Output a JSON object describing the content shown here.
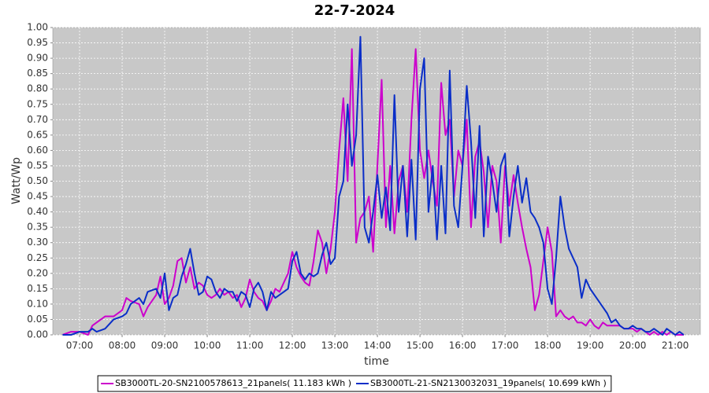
{
  "chart_data": {
    "type": "line",
    "title": "22-7-2024",
    "x_label": "time",
    "y_label": "Watt/Wp",
    "x": [
      6.6,
      6.8,
      7.0,
      7.2,
      7.3,
      7.4,
      7.6,
      7.8,
      8.0,
      8.1,
      8.2,
      8.4,
      8.5,
      8.6,
      8.8,
      8.9,
      9.0,
      9.1,
      9.2,
      9.3,
      9.4,
      9.5,
      9.6,
      9.7,
      9.8,
      9.9,
      10.0,
      10.1,
      10.2,
      10.3,
      10.4,
      10.5,
      10.6,
      10.7,
      10.8,
      10.9,
      11.0,
      11.1,
      11.2,
      11.3,
      11.4,
      11.5,
      11.6,
      11.7,
      11.8,
      11.9,
      12.0,
      12.1,
      12.2,
      12.3,
      12.4,
      12.5,
      12.6,
      12.7,
      12.8,
      12.9,
      13.0,
      13.1,
      13.2,
      13.3,
      13.4,
      13.5,
      13.6,
      13.7,
      13.8,
      13.9,
      14.0,
      14.1,
      14.2,
      14.3,
      14.4,
      14.5,
      14.6,
      14.7,
      14.8,
      14.9,
      15.0,
      15.1,
      15.2,
      15.3,
      15.4,
      15.5,
      15.6,
      15.7,
      15.8,
      15.9,
      16.0,
      16.1,
      16.2,
      16.3,
      16.4,
      16.5,
      16.6,
      16.7,
      16.8,
      16.9,
      17.0,
      17.1,
      17.2,
      17.3,
      17.4,
      17.5,
      17.6,
      17.7,
      17.8,
      17.9,
      18.0,
      18.1,
      18.2,
      18.3,
      18.4,
      18.5,
      18.6,
      18.7,
      18.8,
      18.9,
      19.0,
      19.1,
      19.2,
      19.3,
      19.4,
      19.5,
      19.6,
      19.7,
      19.8,
      19.9,
      20.0,
      20.1,
      20.2,
      20.3,
      20.4,
      20.5,
      20.6,
      20.7,
      20.8,
      20.9,
      21.0,
      21.1,
      21.2
    ],
    "series": [
      {
        "name": "SB3000TL-20-SN2100578613_21panels( 11.183 kWh )",
        "color": "#cc00cc",
        "values": [
          0,
          0.01,
          0.01,
          0,
          0.03,
          0.04,
          0.06,
          0.06,
          0.08,
          0.12,
          0.11,
          0.1,
          0.06,
          0.09,
          0.13,
          0.19,
          0.1,
          0.12,
          0.16,
          0.24,
          0.25,
          0.17,
          0.22,
          0.15,
          0.17,
          0.16,
          0.13,
          0.12,
          0.13,
          0.15,
          0.13,
          0.14,
          0.12,
          0.13,
          0.09,
          0.12,
          0.18,
          0.14,
          0.12,
          0.11,
          0.08,
          0.11,
          0.15,
          0.14,
          0.17,
          0.2,
          0.27,
          0.22,
          0.19,
          0.17,
          0.16,
          0.24,
          0.34,
          0.3,
          0.2,
          0.28,
          0.4,
          0.6,
          0.77,
          0.5,
          0.93,
          0.3,
          0.38,
          0.4,
          0.45,
          0.27,
          0.55,
          0.83,
          0.35,
          0.55,
          0.33,
          0.5,
          0.55,
          0.4,
          0.7,
          0.93,
          0.6,
          0.51,
          0.6,
          0.5,
          0.42,
          0.82,
          0.65,
          0.7,
          0.45,
          0.6,
          0.55,
          0.7,
          0.35,
          0.58,
          0.63,
          0.53,
          0.35,
          0.55,
          0.5,
          0.3,
          0.55,
          0.42,
          0.52,
          0.43,
          0.35,
          0.28,
          0.22,
          0.08,
          0.13,
          0.24,
          0.35,
          0.27,
          0.06,
          0.08,
          0.06,
          0.05,
          0.06,
          0.04,
          0.04,
          0.03,
          0.05,
          0.03,
          0.02,
          0.04,
          0.03,
          0.03,
          0.03,
          0.03,
          0.02,
          0.02,
          0.02,
          0.01,
          0.02,
          0.01,
          0,
          0.01,
          0,
          0.01,
          0,
          0.01,
          0,
          0,
          0
        ]
      },
      {
        "name": "SB3000TL-21-SN2130032031_19panels( 10.699 kWh )",
        "color": "#0a2ec8",
        "values": [
          0,
          0,
          0.01,
          0.01,
          0.02,
          0.01,
          0.02,
          0.05,
          0.06,
          0.07,
          0.1,
          0.12,
          0.1,
          0.14,
          0.15,
          0.12,
          0.2,
          0.08,
          0.12,
          0.13,
          0.19,
          0.23,
          0.28,
          0.2,
          0.13,
          0.14,
          0.19,
          0.18,
          0.14,
          0.12,
          0.15,
          0.14,
          0.14,
          0.11,
          0.14,
          0.13,
          0.09,
          0.15,
          0.17,
          0.14,
          0.08,
          0.14,
          0.12,
          0.13,
          0.14,
          0.15,
          0.24,
          0.27,
          0.2,
          0.18,
          0.2,
          0.19,
          0.2,
          0.26,
          0.3,
          0.23,
          0.25,
          0.45,
          0.5,
          0.75,
          0.55,
          0.65,
          0.97,
          0.35,
          0.3,
          0.4,
          0.52,
          0.38,
          0.48,
          0.34,
          0.78,
          0.4,
          0.55,
          0.32,
          0.57,
          0.31,
          0.8,
          0.9,
          0.4,
          0.55,
          0.31,
          0.55,
          0.33,
          0.86,
          0.42,
          0.35,
          0.55,
          0.81,
          0.63,
          0.38,
          0.68,
          0.32,
          0.58,
          0.5,
          0.4,
          0.55,
          0.59,
          0.32,
          0.45,
          0.55,
          0.43,
          0.51,
          0.4,
          0.38,
          0.35,
          0.3,
          0.15,
          0.1,
          0.25,
          0.45,
          0.35,
          0.28,
          0.25,
          0.22,
          0.12,
          0.18,
          0.15,
          0.13,
          0.11,
          0.09,
          0.07,
          0.04,
          0.05,
          0.03,
          0.02,
          0.02,
          0.03,
          0.02,
          0.02,
          0.01,
          0.01,
          0.02,
          0.01,
          0,
          0.02,
          0.01,
          0,
          0.01,
          0
        ]
      }
    ],
    "xlim": [
      6.37,
      21.59
    ],
    "xticks": [
      {
        "value": 7,
        "label": "07:00"
      },
      {
        "value": 8,
        "label": "08:00"
      },
      {
        "value": 9,
        "label": "09:00"
      },
      {
        "value": 10,
        "label": "10:00"
      },
      {
        "value": 11,
        "label": "11:00"
      },
      {
        "value": 12,
        "label": "12:00"
      },
      {
        "value": 13,
        "label": "13:00"
      },
      {
        "value": 14,
        "label": "14:00"
      },
      {
        "value": 15,
        "label": "15:00"
      },
      {
        "value": 16,
        "label": "16:00"
      },
      {
        "value": 17,
        "label": "17:00"
      },
      {
        "value": 18,
        "label": "18:00"
      },
      {
        "value": 19,
        "label": "19:00"
      },
      {
        "value": 20,
        "label": "20:00"
      },
      {
        "value": 21,
        "label": "21:00"
      }
    ],
    "ylim": [
      0,
      1
    ],
    "yticks": [
      {
        "value": 0,
        "label": "0.00"
      },
      0.05,
      {
        "value": 0.1,
        "label": "0.10"
      },
      0.15,
      {
        "value": 0.2,
        "label": "0.20"
      },
      0.25,
      {
        "value": 0.3,
        "label": "0.30"
      },
      0.35,
      {
        "value": 0.4,
        "label": "0.40"
      },
      0.45,
      {
        "value": 0.5,
        "label": "0.50"
      },
      0.55,
      {
        "value": 0.6,
        "label": "0.60"
      },
      0.65,
      {
        "value": 0.7,
        "label": "0.70"
      },
      0.75,
      {
        "value": 0.8,
        "label": "0.80"
      },
      0.85,
      {
        "value": 0.9,
        "label": "0.90"
      },
      0.95,
      {
        "value": 1,
        "label": "1.00"
      }
    ],
    "grid": true,
    "background": "#c8c8c8",
    "legend": "bottom"
  }
}
